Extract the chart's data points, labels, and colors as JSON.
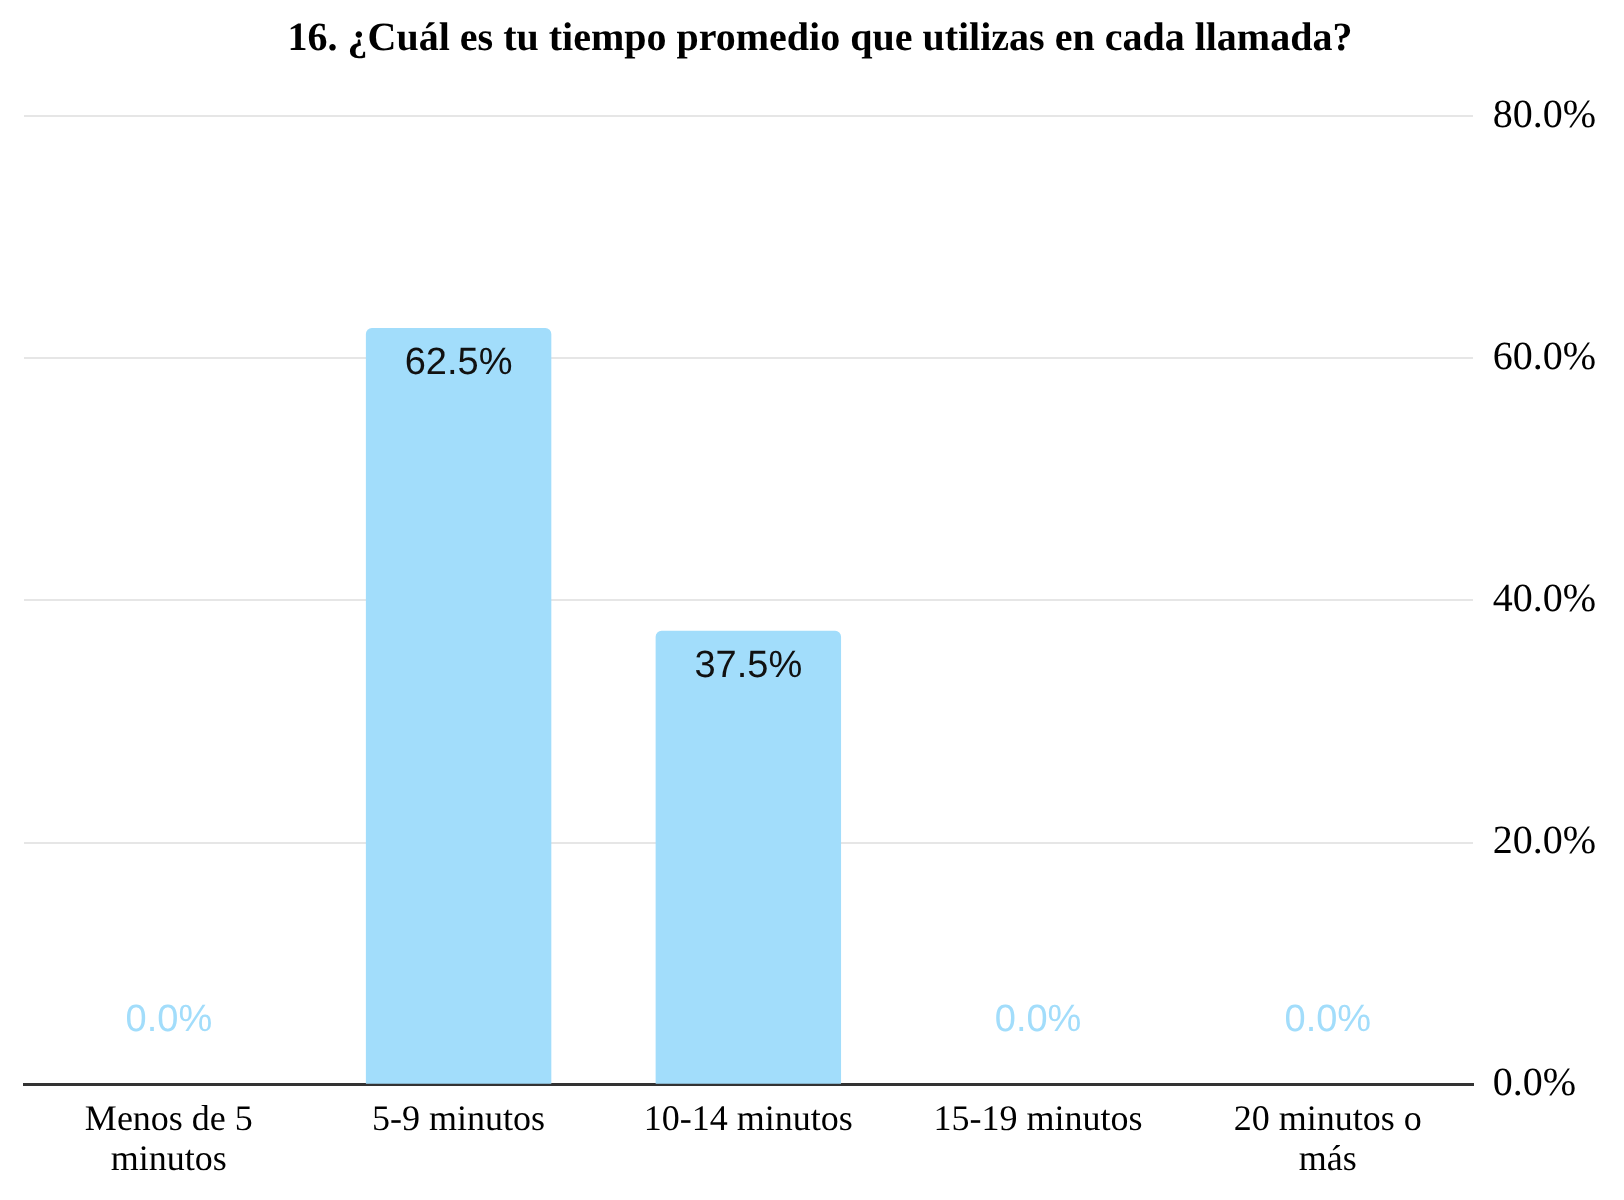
{
  "chart_data": {
    "type": "bar",
    "title": "16. ¿Cuál es tu tiempo promedio que utilizas en cada llamada?",
    "categories": [
      "Menos de 5 minutos",
      "5-9 minutos",
      "10-14 minutos",
      "15-19 minutos",
      "20 minutos o más"
    ],
    "values": [
      0,
      62.5,
      37.5,
      0,
      0
    ],
    "value_labels": [
      "0.0%",
      "62.5%",
      "37.5%",
      "0.0%",
      "0.0%"
    ],
    "color": "#a2ddfb",
    "ylim": [
      0,
      80
    ],
    "yticks": [
      {
        "value": 0,
        "label": "0.0%"
      },
      {
        "value": 20,
        "label": "20.0%"
      },
      {
        "value": 40,
        "label": "40.0%"
      },
      {
        "value": 60,
        "label": "60.0%"
      },
      {
        "value": 80,
        "label": "80.0%"
      }
    ],
    "grid": "y",
    "legend": false
  }
}
